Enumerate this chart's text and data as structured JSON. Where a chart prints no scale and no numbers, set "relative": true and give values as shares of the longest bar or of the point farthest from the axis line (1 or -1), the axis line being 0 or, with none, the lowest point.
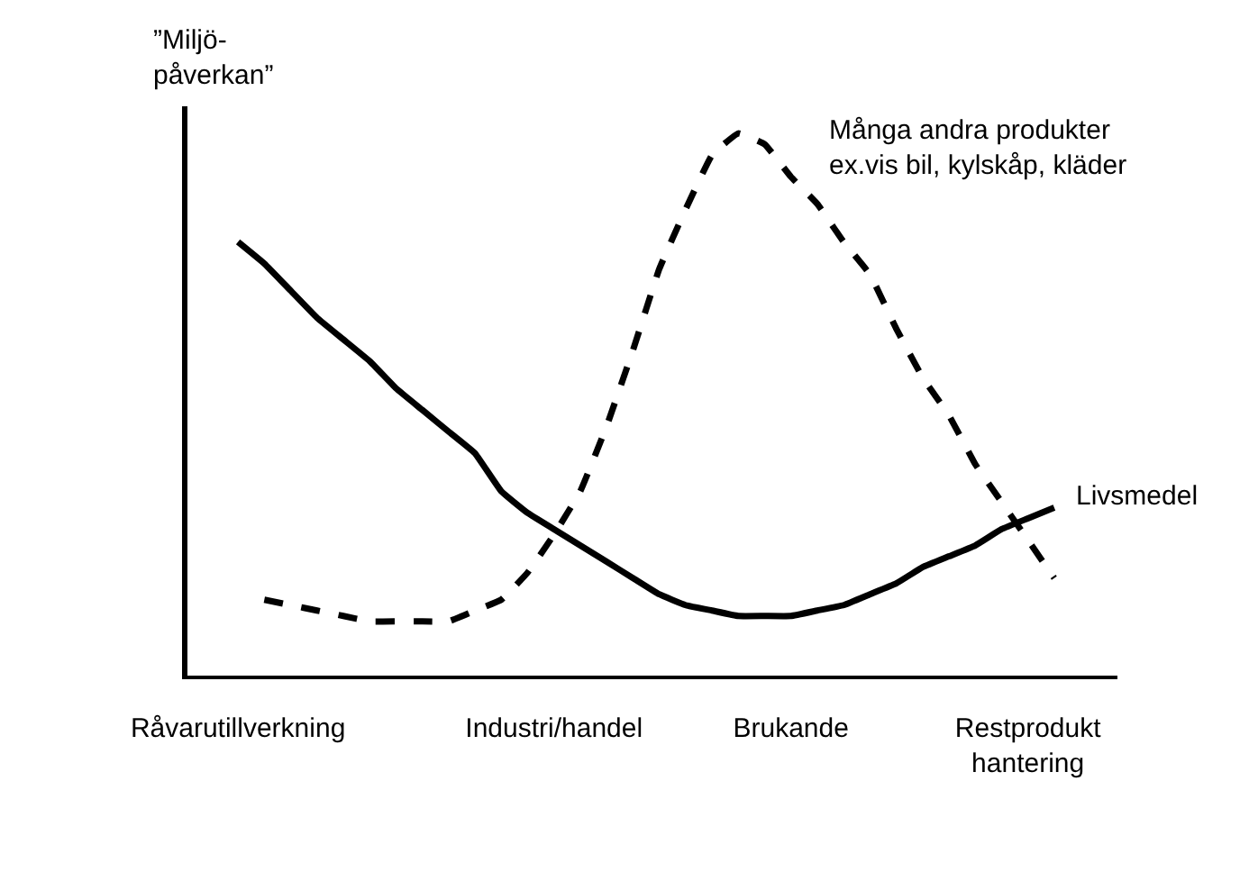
{
  "chart_data": {
    "type": "line",
    "relative": true,
    "ylabel": "”Miljö-\npåverkan”",
    "legend": false,
    "marker": "none",
    "categories": [
      "Råvarutillverkning",
      null,
      null,
      null,
      null,
      null,
      null,
      null,
      null,
      null,
      null,
      null,
      "Industri/handel",
      null,
      null,
      null,
      null,
      null,
      null,
      null,
      null,
      "Brukande",
      null,
      null,
      null,
      null,
      null,
      null,
      null,
      null,
      "Restprodukt\nhantering",
      null
    ],
    "series": [
      {
        "name": "Livsmedel",
        "color": "#000000",
        "line_style": "solid",
        "values": [
          0.8,
          0.76,
          0.71,
          0.66,
          0.62,
          0.58,
          0.53,
          0.49,
          0.45,
          0.41,
          0.34,
          0.3,
          0.27,
          0.24,
          0.21,
          0.18,
          0.15,
          0.13,
          0.12,
          0.11,
          0.11,
          0.11,
          0.12,
          0.13,
          0.15,
          0.17,
          0.2,
          0.22,
          0.24,
          0.27,
          0.29,
          0.31
        ]
      },
      {
        "name": "Många andra produkter\nex.vis bil, kylskåp, kläder",
        "color": "#000000",
        "line_style": "dashed",
        "values": [
          null,
          0.14,
          0.13,
          0.12,
          0.11,
          0.1,
          0.1,
          0.1,
          0.1,
          0.12,
          0.14,
          0.19,
          0.26,
          0.34,
          0.46,
          0.6,
          0.75,
          0.86,
          0.96,
          1,
          0.98,
          0.92,
          0.87,
          0.8,
          0.74,
          0.64,
          0.55,
          0.48,
          0.39,
          0.32,
          0.25,
          0.18
        ]
      }
    ]
  }
}
